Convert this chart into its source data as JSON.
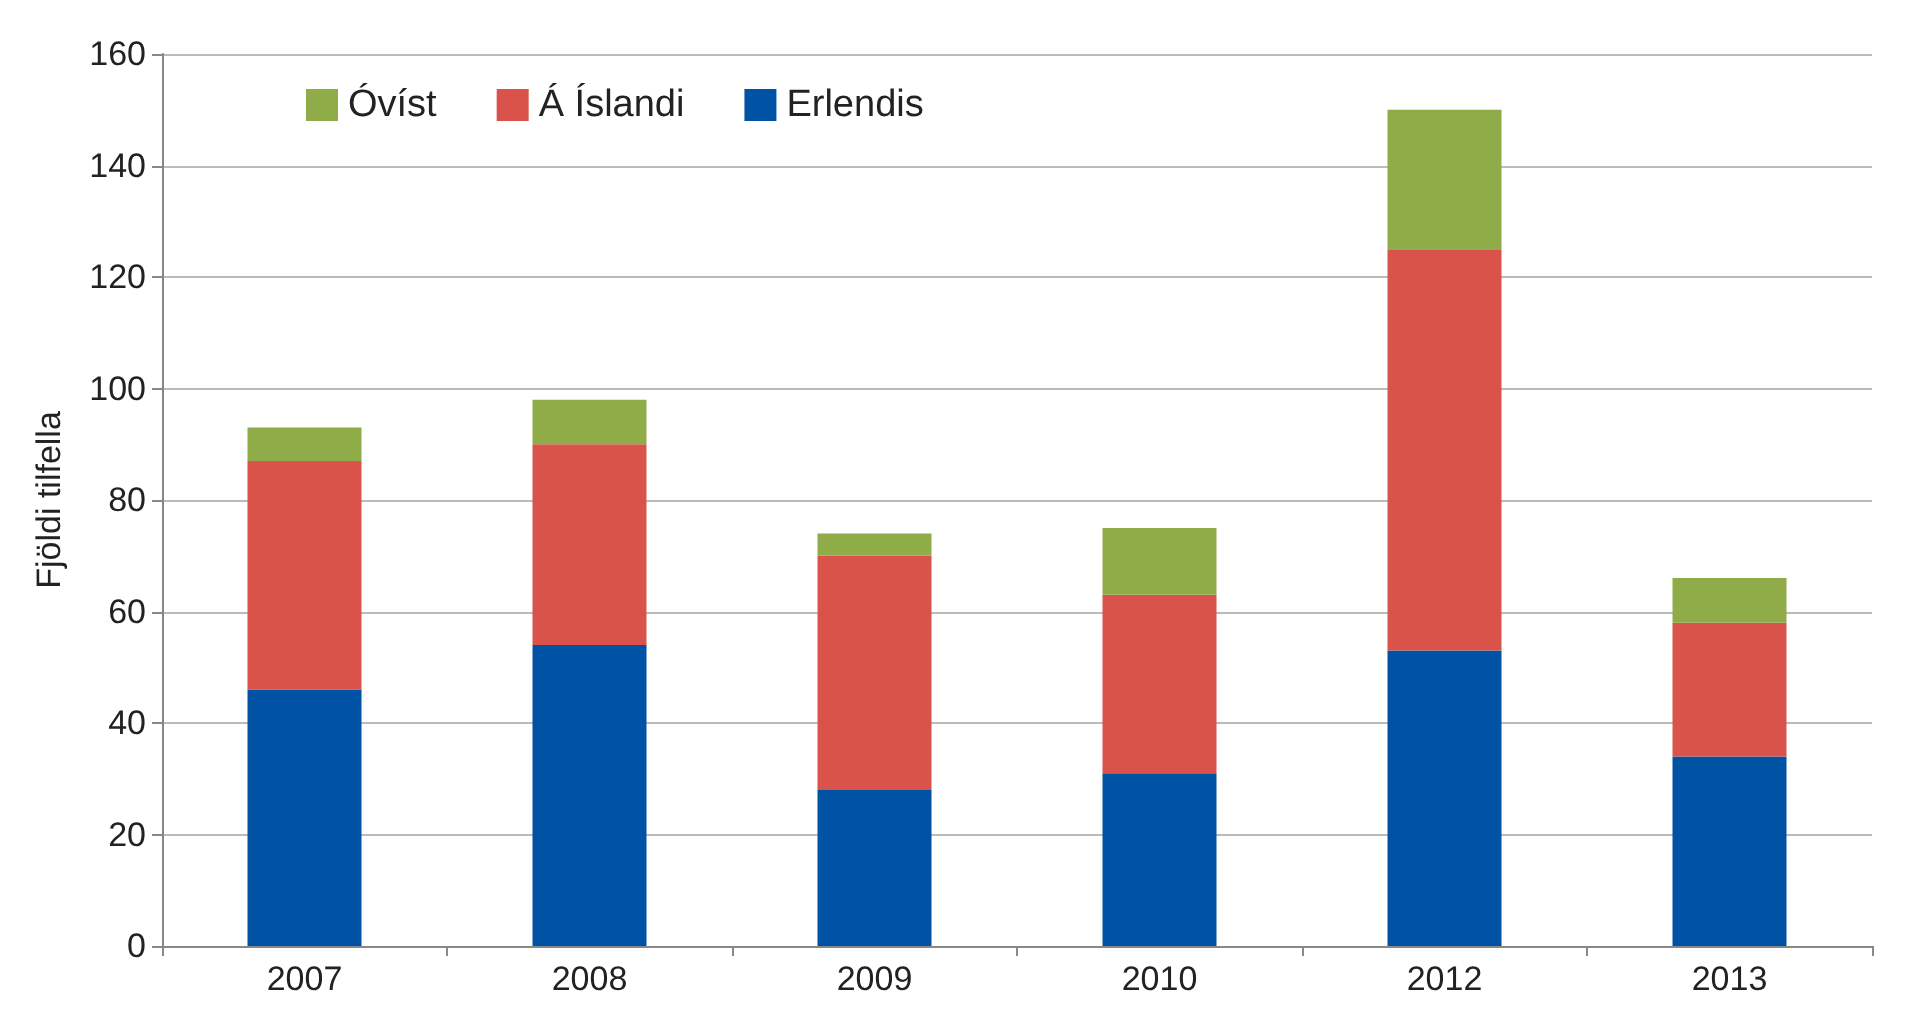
{
  "chart_data": {
    "type": "bar",
    "stacked": true,
    "ylabel": "Fjöldi tilfella",
    "categories": [
      "2007",
      "2008",
      "2009",
      "2010",
      "2012",
      "2013"
    ],
    "series": [
      {
        "name": "Erlendis",
        "color": "#0052a5",
        "values": [
          46,
          54,
          28,
          31,
          53,
          34
        ]
      },
      {
        "name": "Á Íslandi",
        "color": "#d9534a",
        "values": [
          41,
          36,
          42,
          32,
          72,
          24
        ]
      },
      {
        "name": "Óvíst",
        "color": "#8fac48",
        "values": [
          6,
          8,
          4,
          12,
          25,
          8
        ]
      }
    ],
    "ylim": [
      0,
      160
    ],
    "yticks": [
      0,
      20,
      40,
      60,
      80,
      100,
      120,
      140,
      160
    ],
    "grid": "y",
    "legend": "top left"
  }
}
